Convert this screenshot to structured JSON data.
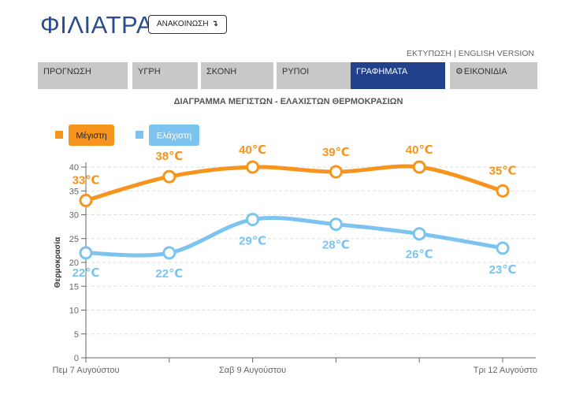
{
  "header": {
    "city": "ΦΙΛΙΑΤΡΑ",
    "announce_label": "ΑΝΑΚΟΙΝΩΣΗ",
    "announce_icon": "↴"
  },
  "toplinks": {
    "print": "ΕΚΤΥΠΩΣΗ",
    "separator": "|",
    "english": "ENGLISH VERSION"
  },
  "nav": {
    "tabs": [
      {
        "label": "ΠΡΟΓΝΩΣΗ"
      },
      {
        "label": "ΥΓΡΗ"
      },
      {
        "label": "ΣΚΟΝΗ"
      },
      {
        "label": "ΡΥΠΟΙ"
      },
      {
        "label": "ΓΡΑΦΗΜΑΤΑ"
      },
      {
        "label": "ΕΙΚΟΝΙΔΙΑ",
        "icon": "gear-icon"
      }
    ],
    "active_index": 4
  },
  "chart_data": {
    "type": "line",
    "title": "ΔΙΑΓΡΑΜΜΑ ΜΕΓΙΣΤΩΝ - ΕΛΑΧΙΣΤΩΝ ΘΕΡΜΟΚΡΑΣΙΩΝ",
    "ylabel": "Θερμοκρασία",
    "xlabel": "",
    "ylim": [
      0,
      40
    ],
    "yticks": [
      0,
      5,
      10,
      15,
      20,
      25,
      30,
      35,
      40
    ],
    "x_tick_labels": [
      "Πεμ 7 Αυγούστου",
      "Σαβ 9 Αυγούστου",
      "Τρι 12 Αυγούστο"
    ],
    "grid": "horizontal dashed",
    "legend": "top-left",
    "series": [
      {
        "name": "Μέγιστη",
        "color": "#f7941d",
        "values": [
          33,
          38,
          40,
          39,
          40,
          35
        ],
        "labels": [
          "33℃",
          "38℃",
          "40℃",
          "39℃",
          "40℃",
          "35℃"
        ]
      },
      {
        "name": "Ελάχιστη",
        "color": "#7cc4ef",
        "values": [
          22,
          22,
          29,
          28,
          26,
          23
        ],
        "labels": [
          "22℃",
          "22℃",
          "29℃",
          "28℃",
          "26℃",
          "23℃"
        ]
      }
    ]
  }
}
